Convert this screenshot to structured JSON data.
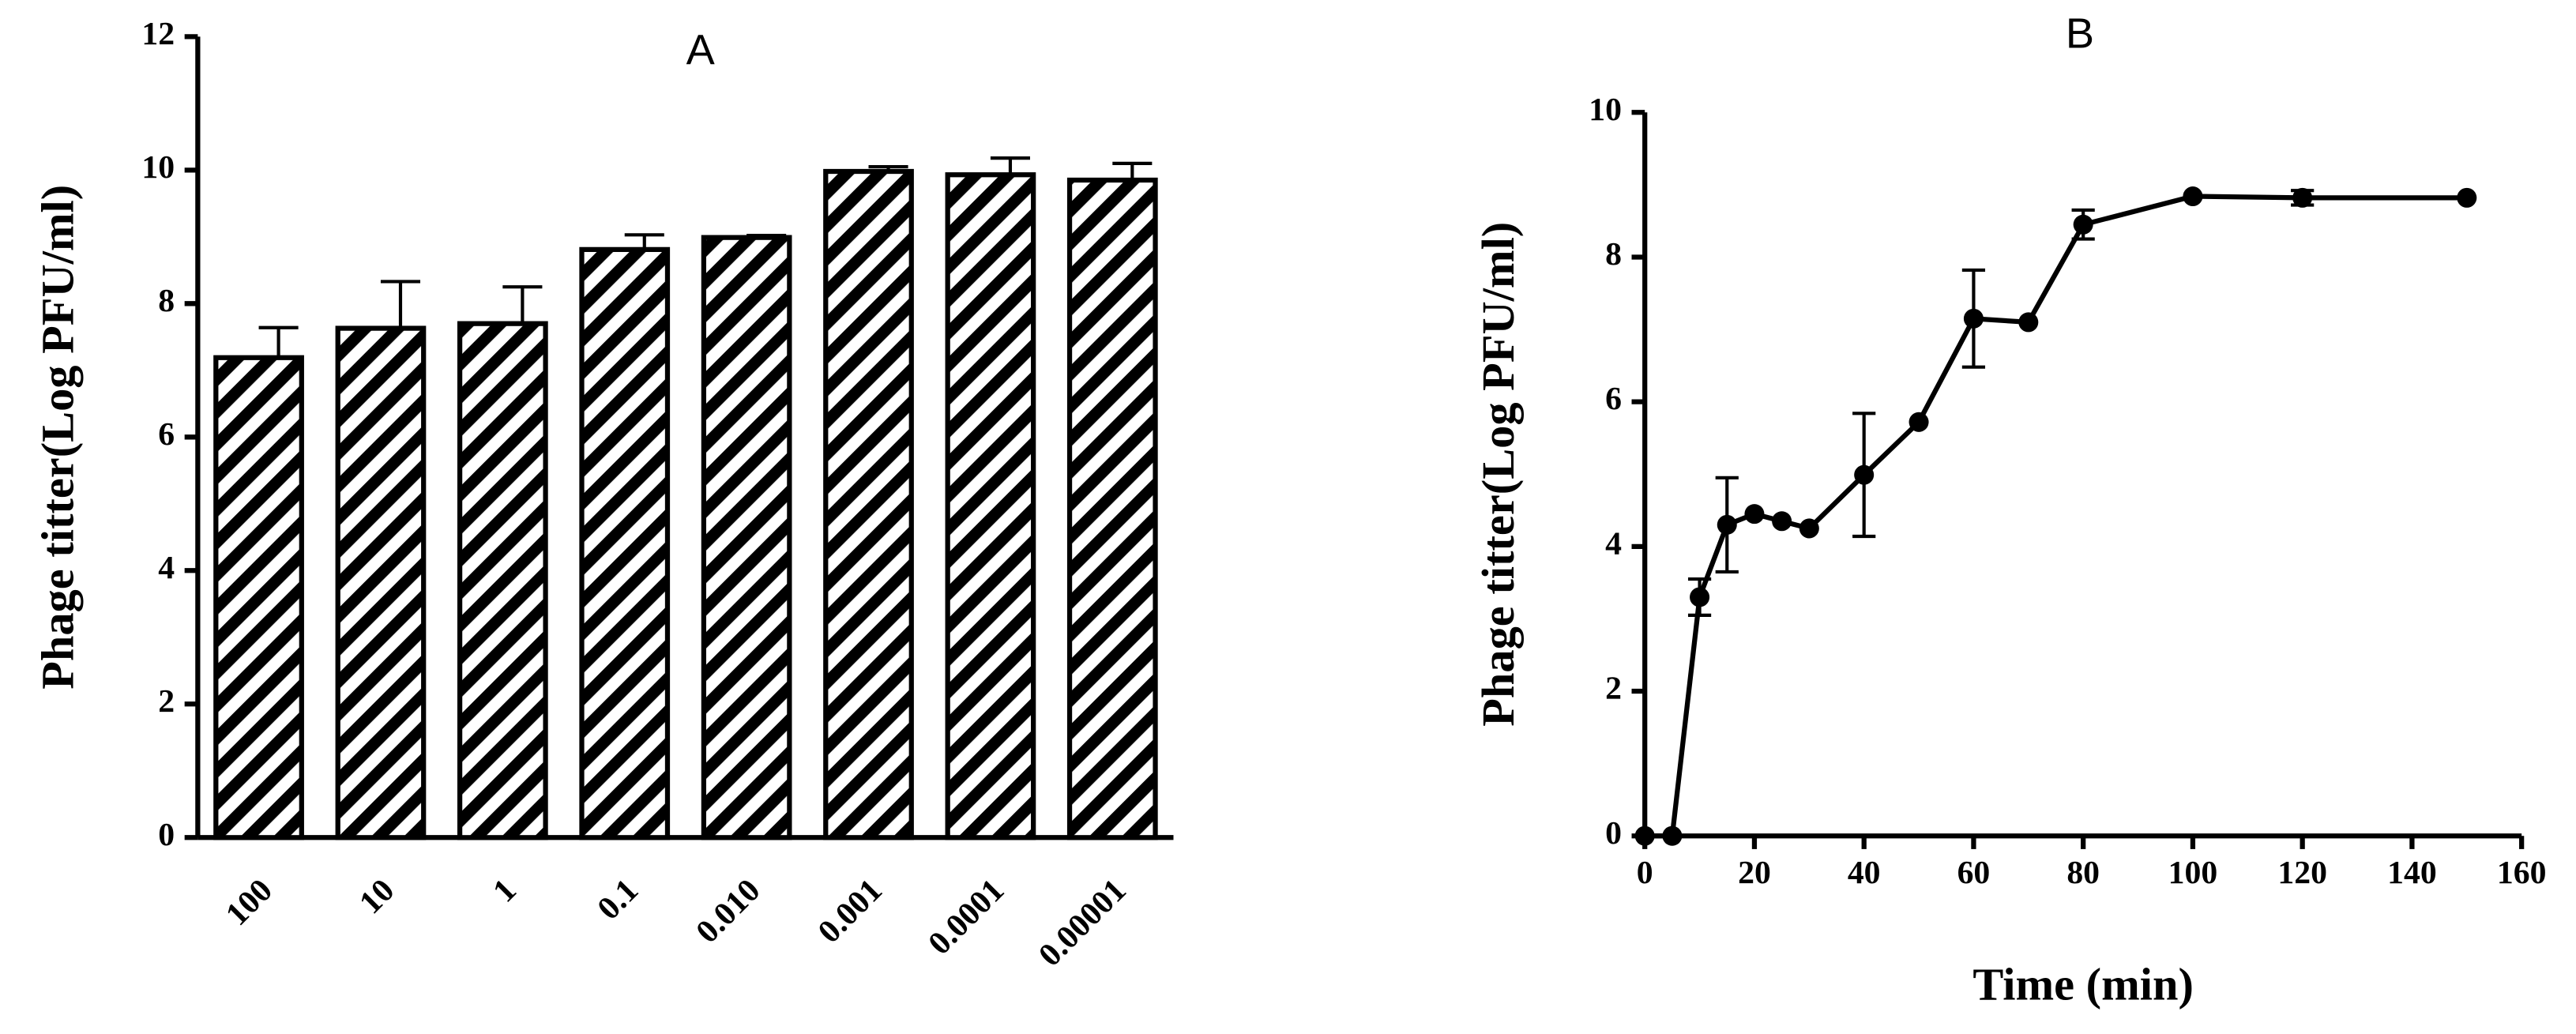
{
  "chart_data": [
    {
      "type": "bar",
      "title": "A",
      "y_label": "Phage titter(Log PFU/ml)",
      "categories": [
        "100",
        "10",
        "1",
        "0.1",
        "0.010",
        "0.001",
        "0.0001",
        "0.00001"
      ],
      "values": [
        7.19,
        7.63,
        7.7,
        8.81,
        8.99,
        9.98,
        9.93,
        9.85
      ],
      "errors": [
        0.45,
        0.7,
        0.55,
        0.22,
        0.03,
        0.07,
        0.25,
        0.25
      ],
      "color": "#000000",
      "hatch": true,
      "ylim": [
        0,
        12
      ],
      "yticks": [
        0,
        2,
        4,
        6,
        8,
        10,
        12
      ]
    },
    {
      "type": "line",
      "title": "B",
      "x_label": "Time  (min)",
      "y_label": "Phage titter(Log PFU/ml)",
      "x": [
        0,
        5,
        10,
        15,
        20,
        25,
        30,
        40,
        50,
        60,
        70,
        80,
        100,
        120,
        150
      ],
      "values": [
        0,
        0,
        3.3,
        4.3,
        4.45,
        4.35,
        4.25,
        4.99,
        5.72,
        7.15,
        7.1,
        8.45,
        8.84,
        8.82,
        8.82
      ],
      "errors": [
        0,
        0,
        0.25,
        0.65,
        0,
        0,
        0,
        0.85,
        0,
        0.67,
        0,
        0.2,
        0,
        0.1,
        0
      ],
      "color": "#000000",
      "xlim": [
        0,
        160
      ],
      "xticks": [
        0,
        20,
        40,
        60,
        80,
        100,
        120,
        140,
        160
      ],
      "ylim": [
        0,
        10
      ],
      "yticks": [
        0,
        2,
        4,
        6,
        8,
        10
      ]
    }
  ]
}
